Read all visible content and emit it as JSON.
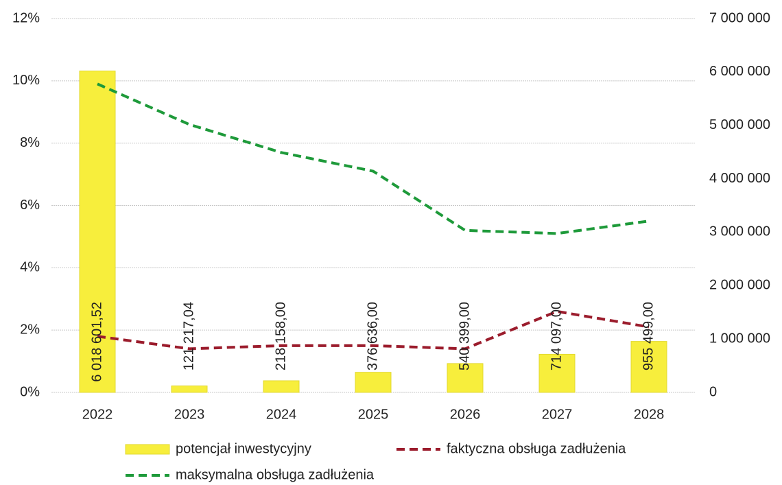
{
  "chart_data": {
    "type": "bar",
    "categories": [
      "2022",
      "2023",
      "2024",
      "2025",
      "2026",
      "2027",
      "2028"
    ],
    "series": [
      {
        "name": "potencjał inwestycyjny",
        "type": "bar",
        "axis": "y2",
        "color": "#f7ee3c",
        "values": [
          6018601.52,
          121217.04,
          218158.0,
          376636.0,
          540399.0,
          714097.0,
          955499.0
        ],
        "value_labels": [
          "6 018 601,52",
          "121 217,04",
          "218 158,00",
          "376 636,00",
          "540 399,00",
          "714 097,00",
          "955 499,00"
        ]
      },
      {
        "name": "faktyczna obsługa zadłużenia",
        "type": "line",
        "axis": "y",
        "color": "#9b1c2c",
        "values": [
          1.8,
          1.4,
          1.5,
          1.5,
          1.4,
          2.6,
          2.1
        ]
      },
      {
        "name": "maksymalna obsługa zadłużenia",
        "type": "line",
        "axis": "y",
        "color": "#1e9a3a",
        "values": [
          9.9,
          8.6,
          7.7,
          7.1,
          5.2,
          5.1,
          5.5
        ]
      }
    ],
    "ylim": [
      0,
      12
    ],
    "yticks": [
      {
        "value": 0,
        "label": "0%"
      },
      {
        "value": 2,
        "label": "2%"
      },
      {
        "value": 4,
        "label": "4%"
      },
      {
        "value": 6,
        "label": "6%"
      },
      {
        "value": 8,
        "label": "8%"
      },
      {
        "value": 10,
        "label": "10%"
      },
      {
        "value": 12,
        "label": "12%"
      }
    ],
    "y2lim": [
      0,
      7000000
    ],
    "y2ticks": [
      0,
      {
        "value": 1000000,
        "label": "1 000 000"
      },
      {
        "value": 2000000,
        "label": "2 000 000"
      },
      {
        "value": 3000000,
        "label": "3 000 000"
      },
      {
        "value": 4000000,
        "label": "4 000 000"
      },
      {
        "value": 5000000,
        "label": "5 000 000"
      },
      {
        "value": 6000000,
        "label": "6 000 000"
      },
      {
        "value": 7000000,
        "label": "7 000 000"
      }
    ],
    "grid": true
  }
}
